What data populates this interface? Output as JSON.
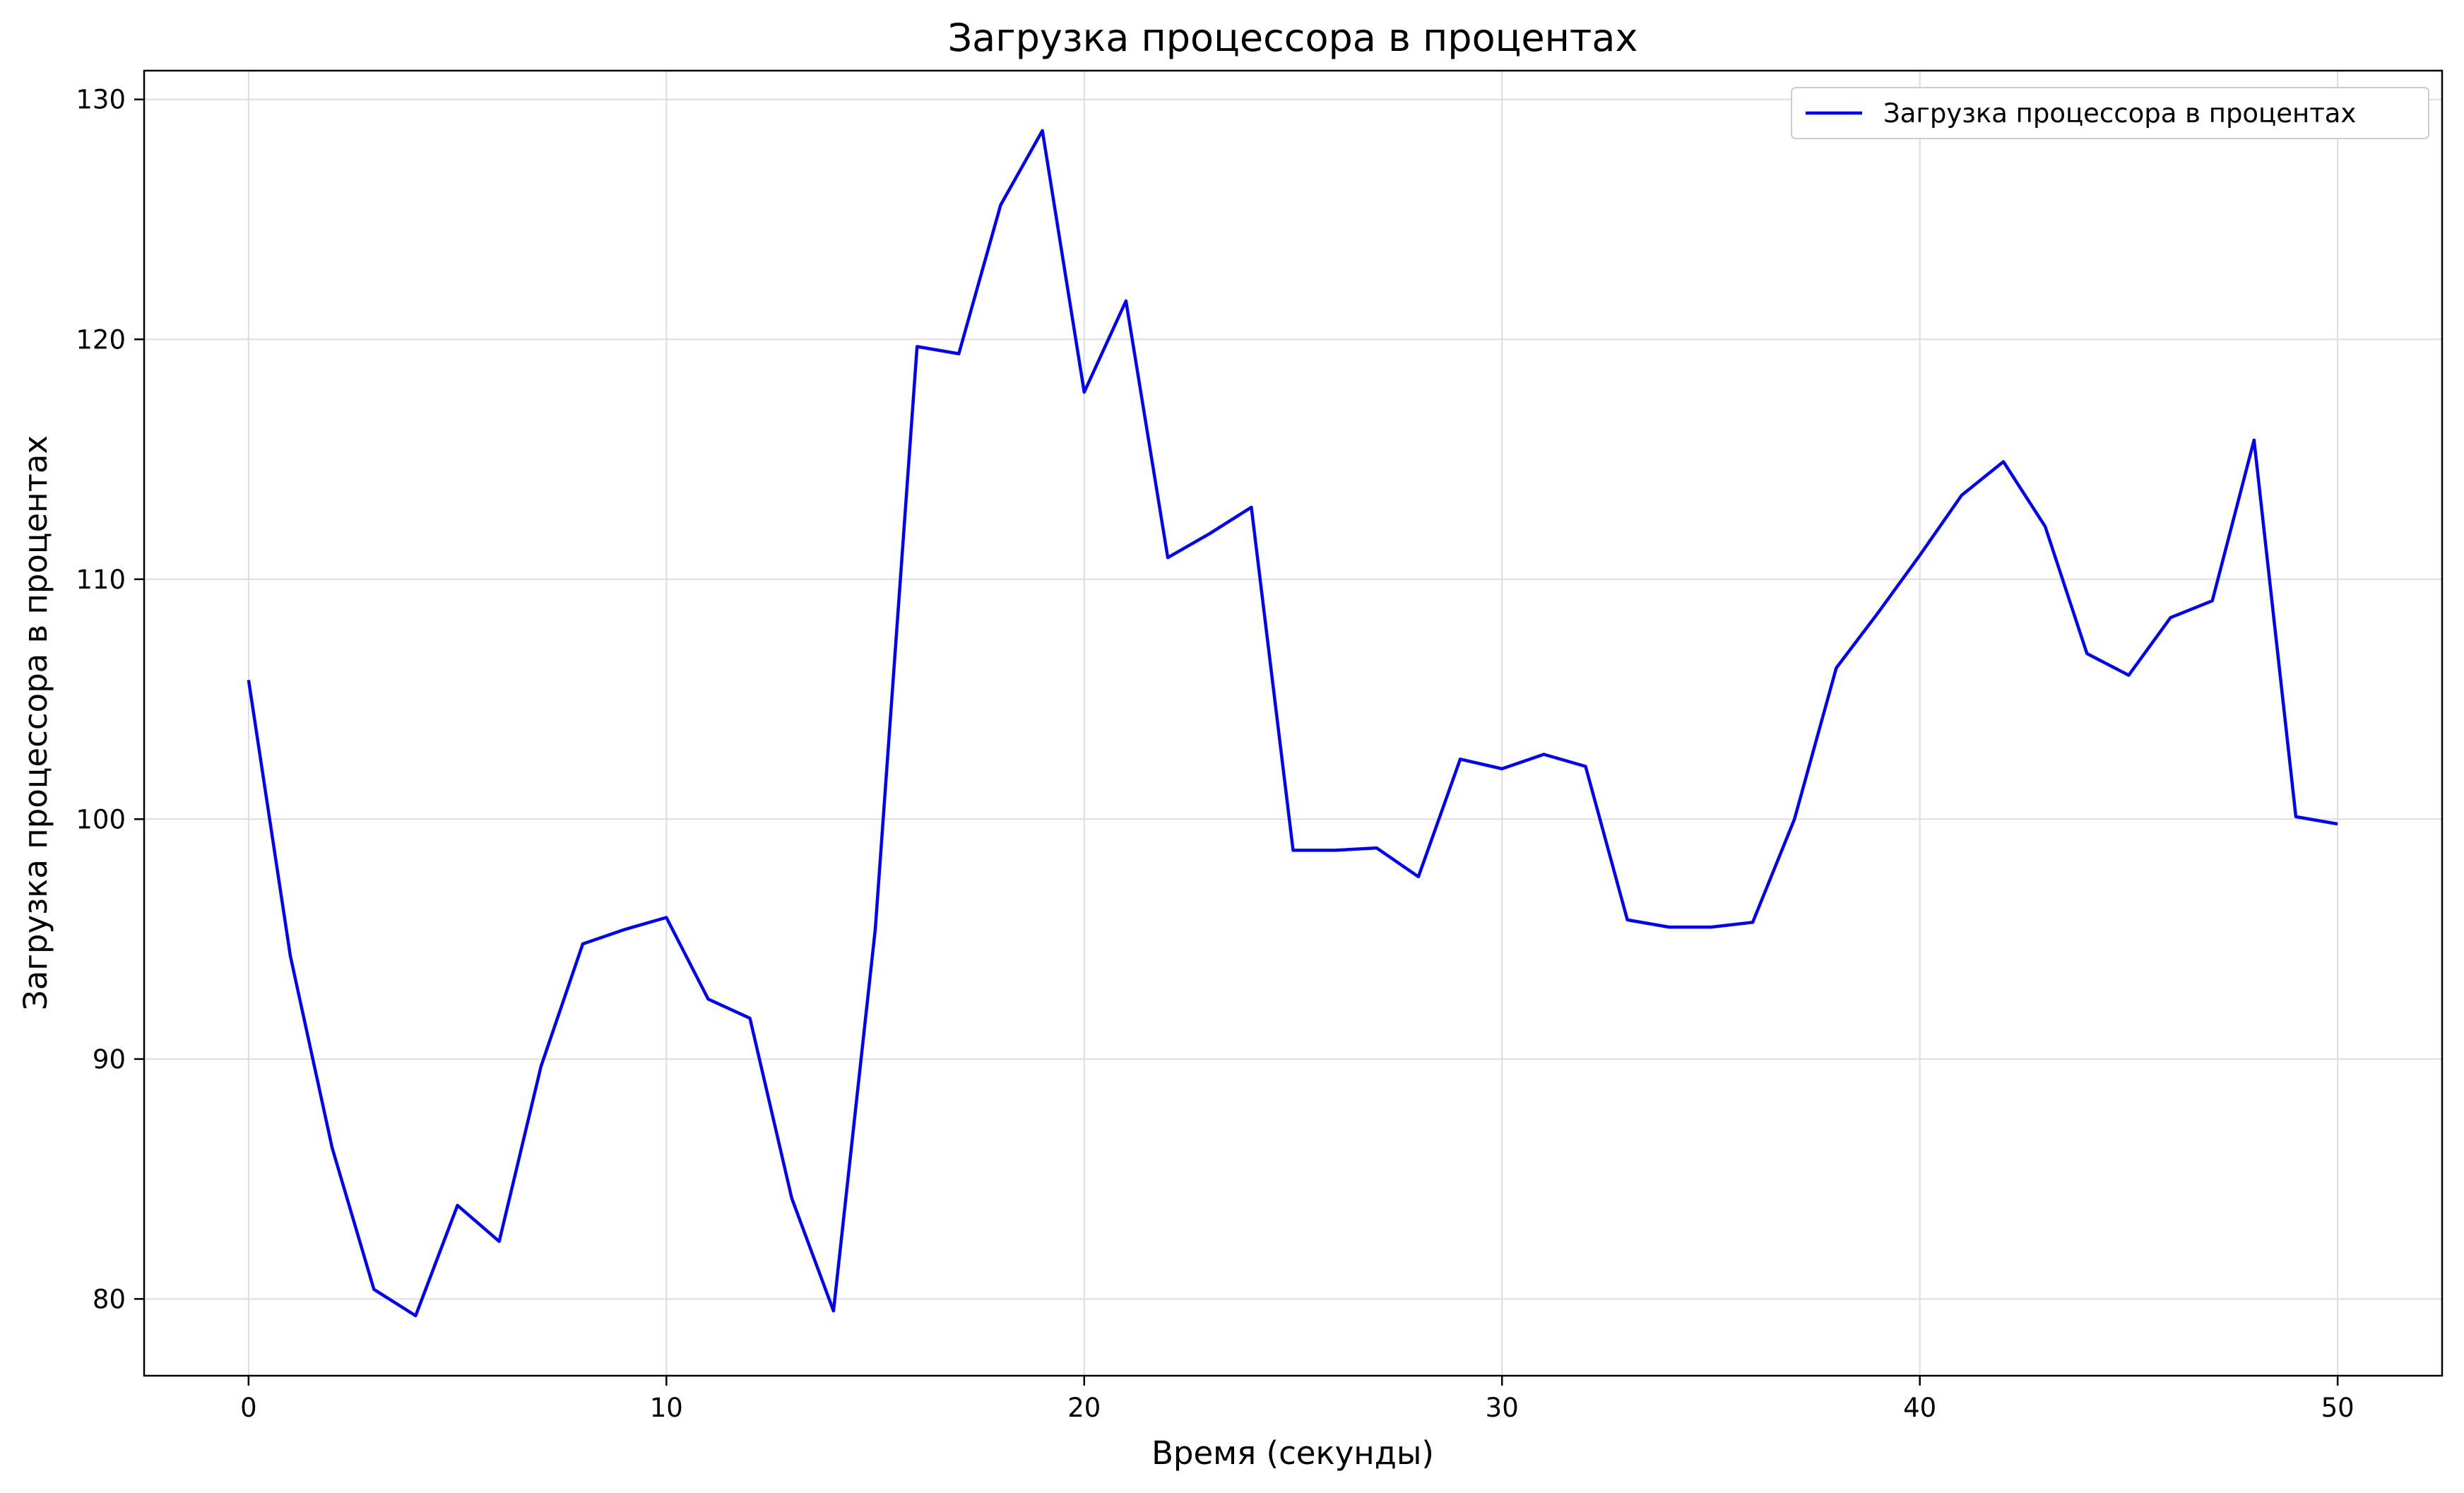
{
  "chart_data": {
    "type": "line",
    "title": "Загрузка процессора в процентах",
    "xlabel": "Время (секунды)",
    "ylabel": "Загрузка процессора в процентах",
    "xlim": [
      -2.5,
      52.5
    ],
    "ylim": [
      76.8,
      131.2
    ],
    "xticks": [
      0,
      10,
      20,
      30,
      40,
      50
    ],
    "yticks": [
      80,
      90,
      100,
      110,
      120,
      130
    ],
    "grid": true,
    "legend": {
      "position": "top-right"
    },
    "series": [
      {
        "name": "Загрузка процессора в процентах",
        "color": "#0000ff",
        "x": [
          0,
          1,
          2,
          3,
          4,
          5,
          6,
          7,
          8,
          9,
          10,
          11,
          12,
          13,
          14,
          15,
          16,
          17,
          18,
          19,
          20,
          21,
          22,
          23,
          24,
          25,
          26,
          27,
          28,
          29,
          30,
          31,
          32,
          33,
          34,
          35,
          36,
          37,
          38,
          39,
          40,
          41,
          42,
          43,
          44,
          45,
          46,
          47,
          48,
          49,
          50
        ],
        "values": [
          105.8,
          94.3,
          86.3,
          80.4,
          79.3,
          83.9,
          82.4,
          89.7,
          94.8,
          95.4,
          95.9,
          92.5,
          91.7,
          84.2,
          79.5,
          95.4,
          119.7,
          119.4,
          125.6,
          128.7,
          117.8,
          121.6,
          110.9,
          111.9,
          113.0,
          98.7,
          98.7,
          98.8,
          97.6,
          102.5,
          102.1,
          102.7,
          102.2,
          95.8,
          95.5,
          95.5,
          95.7,
          100.0,
          106.3,
          108.6,
          111.0,
          113.5,
          114.9,
          112.2,
          106.9,
          106.0,
          108.4,
          109.1,
          115.8,
          100.1,
          99.8
        ]
      }
    ]
  }
}
